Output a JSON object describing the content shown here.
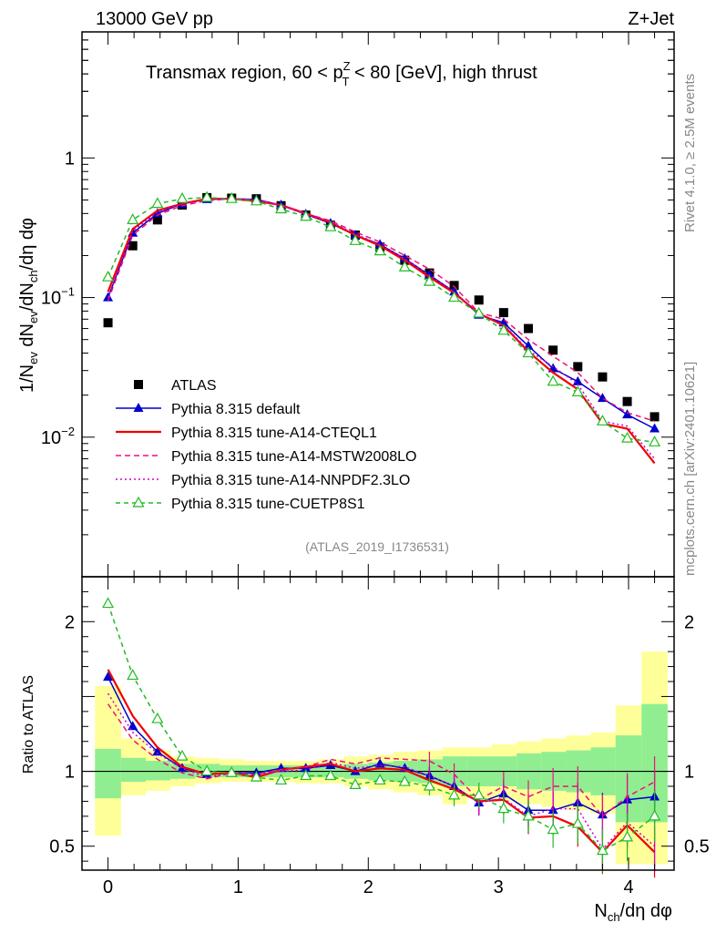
{
  "header": {
    "energy_label": "13000 GeV pp",
    "process_label": "Z+Jet"
  },
  "side_text": {
    "rivet": "Rivet 4.1.0, ≥ 2.5M events",
    "mcplots": "mcplots.cern.ch [arXiv:2401.10621]"
  },
  "analysis_id": "(ATLAS_2019_I1736531)",
  "chart_data": [
    {
      "type": "line",
      "panel": "main",
      "title": "Transmax region, 60 < p_T^Z < 80 [GeV], high thrust",
      "title_parts": {
        "a": "Transmax region, 60 < p",
        "sup": "Z",
        "sub": "T",
        "b": " < 80 [GeV], high thrust"
      },
      "ylabel": "1/N_ev dN_ev/dN_ch/dη dφ",
      "xlim": [
        -0.2,
        4.35
      ],
      "ylim": [
        0.001,
        8
      ],
      "yscale": "log",
      "y_ticks": [
        {
          "v": 1,
          "label": "1"
        },
        {
          "v": 0.1,
          "label": "10",
          "exp": "−1"
        },
        {
          "v": 0.01,
          "label": "10",
          "exp": "−2"
        }
      ],
      "x": [
        0.0,
        0.19,
        0.38,
        0.57,
        0.76,
        0.95,
        1.14,
        1.33,
        1.52,
        1.71,
        1.9,
        2.09,
        2.28,
        2.47,
        2.66,
        2.85,
        3.04,
        3.23,
        3.42,
        3.61,
        3.8,
        3.99,
        4.2
      ],
      "series": [
        {
          "name": "ATLAS",
          "color": "#000000",
          "marker": "square",
          "values": [
            0.066,
            0.235,
            0.36,
            0.46,
            0.52,
            0.515,
            0.51,
            0.455,
            0.39,
            0.33,
            0.28,
            0.23,
            0.185,
            0.15,
            0.122,
            0.096,
            0.078,
            0.06,
            0.042,
            0.032,
            0.027,
            0.018,
            0.014
          ]
        },
        {
          "name": "Pythia 8.315 default",
          "color": "#0000cc",
          "dash": "",
          "marker": "triangle",
          "values": [
            0.1,
            0.29,
            0.4,
            0.47,
            0.505,
            0.51,
            0.505,
            0.46,
            0.395,
            0.34,
            0.28,
            0.24,
            0.19,
            0.145,
            0.11,
            0.075,
            0.066,
            0.045,
            0.031,
            0.025,
            0.019,
            0.0145,
            0.0115
          ]
        },
        {
          "name": "Pythia 8.315 tune-A14-CTEQL1",
          "color": "#ee0000",
          "dash": "",
          "marker": "none",
          "values": [
            0.11,
            0.31,
            0.42,
            0.47,
            0.51,
            0.51,
            0.49,
            0.46,
            0.4,
            0.345,
            0.28,
            0.235,
            0.185,
            0.14,
            0.108,
            0.077,
            0.063,
            0.041,
            0.029,
            0.022,
            0.0125,
            0.0115,
            0.0065
          ]
        },
        {
          "name": "Pythia 8.315 tune-A14-MSTW2008LO",
          "color": "#ee1177",
          "dash": "6,4",
          "marker": "none",
          "values": [
            0.095,
            0.28,
            0.39,
            0.455,
            0.495,
            0.51,
            0.5,
            0.46,
            0.4,
            0.355,
            0.295,
            0.25,
            0.2,
            0.16,
            0.12,
            0.078,
            0.07,
            0.05,
            0.038,
            0.029,
            0.019,
            0.015,
            0.013
          ]
        },
        {
          "name": "Pythia 8.315 tune-A14-NNPDF2.3LO",
          "color": "#cc00cc",
          "dash": "2,3",
          "marker": "none",
          "values": [
            0.1,
            0.3,
            0.41,
            0.47,
            0.5,
            0.51,
            0.5,
            0.455,
            0.395,
            0.35,
            0.285,
            0.24,
            0.19,
            0.145,
            0.11,
            0.076,
            0.064,
            0.042,
            0.032,
            0.024,
            0.013,
            0.012,
            0.007
          ]
        },
        {
          "name": "Pythia 8.315 tune-CUETP8S1",
          "color": "#22bb22",
          "dash": "5,4",
          "marker": "triangle-open",
          "values": [
            0.14,
            0.36,
            0.47,
            0.51,
            0.52,
            0.51,
            0.49,
            0.43,
            0.38,
            0.32,
            0.255,
            0.215,
            0.165,
            0.13,
            0.1,
            0.077,
            0.058,
            0.04,
            0.025,
            0.021,
            0.013,
            0.0098,
            0.0092
          ]
        }
      ]
    },
    {
      "type": "line",
      "panel": "ratio",
      "ylabel": "Ratio to ATLAS",
      "xlabel": "N_ch/dη dφ",
      "xlim": [
        -0.2,
        4.35
      ],
      "ylim": [
        0.34,
        2.3
      ],
      "y_ticks": [
        {
          "v": 0.5,
          "label": "0.5"
        },
        {
          "v": 1,
          "label": "1"
        },
        {
          "v": 2,
          "label": "2"
        }
      ],
      "x_ticks": [
        0,
        1,
        2,
        3,
        4
      ],
      "bands": {
        "edges": [
          -0.1,
          0.1,
          0.29,
          0.48,
          0.67,
          0.86,
          1.05,
          1.24,
          1.43,
          1.62,
          1.81,
          2.0,
          2.19,
          2.38,
          2.57,
          2.76,
          2.95,
          3.14,
          3.33,
          3.52,
          3.71,
          3.9,
          4.1,
          4.3
        ],
        "yellow_lo": [
          0.57,
          0.84,
          0.87,
          0.9,
          0.92,
          0.93,
          0.93,
          0.93,
          0.92,
          0.92,
          0.9,
          0.88,
          0.86,
          0.84,
          0.78,
          0.82,
          0.8,
          0.78,
          0.76,
          0.74,
          0.72,
          0.38,
          0.38
        ],
        "yellow_hi": [
          1.57,
          1.22,
          1.14,
          1.1,
          1.09,
          1.08,
          1.07,
          1.07,
          1.07,
          1.08,
          1.1,
          1.11,
          1.13,
          1.14,
          1.16,
          1.16,
          1.18,
          1.2,
          1.22,
          1.24,
          1.26,
          1.44,
          1.8
        ],
        "green_lo": [
          0.82,
          0.93,
          0.94,
          0.95,
          0.96,
          0.96,
          0.96,
          0.96,
          0.96,
          0.96,
          0.95,
          0.94,
          0.93,
          0.92,
          0.9,
          0.9,
          0.9,
          0.88,
          0.87,
          0.86,
          0.84,
          0.66,
          0.66
        ],
        "green_hi": [
          1.15,
          1.09,
          1.07,
          1.05,
          1.05,
          1.04,
          1.04,
          1.04,
          1.04,
          1.04,
          1.05,
          1.06,
          1.07,
          1.08,
          1.1,
          1.1,
          1.1,
          1.12,
          1.13,
          1.14,
          1.16,
          1.24,
          1.45
        ]
      },
      "series": [
        {
          "name": "Pythia 8.315 default",
          "color": "#0000cc",
          "dash": "",
          "marker": "triangle",
          "values": [
            1.63,
            1.3,
            1.13,
            1.02,
            0.98,
            0.99,
            0.99,
            1.02,
            1.02,
            1.04,
            1.0,
            1.05,
            1.02,
            0.97,
            0.9,
            0.79,
            0.85,
            0.74,
            0.74,
            0.79,
            0.71,
            0.81,
            0.83
          ]
        },
        {
          "name": "Pythia 8.315 tune-A14-CTEQL1",
          "color": "#ee0000",
          "dash": "",
          "marker": "none",
          "values": [
            1.68,
            1.37,
            1.16,
            1.03,
            0.98,
            0.99,
            0.96,
            1.01,
            1.03,
            1.05,
            1.0,
            1.02,
            1.01,
            0.94,
            0.88,
            0.8,
            0.81,
            0.69,
            0.7,
            0.63,
            0.46,
            0.64,
            0.46
          ]
        },
        {
          "name": "Pythia 8.315 tune-A14-MSTW2008LO",
          "color": "#ee1177",
          "dash": "6,4",
          "marker": "none",
          "values": [
            1.45,
            1.21,
            1.08,
            0.99,
            0.95,
            0.99,
            0.98,
            1.01,
            1.03,
            1.08,
            1.05,
            1.09,
            1.08,
            1.07,
            0.98,
            0.81,
            0.9,
            0.83,
            0.9,
            0.9,
            0.7,
            0.83,
            0.93
          ]
        },
        {
          "name": "Pythia 8.315 tune-A14-NNPDF2.3LO",
          "color": "#cc00cc",
          "dash": "2,3",
          "marker": "none",
          "values": [
            1.52,
            1.26,
            1.12,
            1.02,
            0.96,
            0.99,
            0.98,
            1.0,
            1.01,
            1.06,
            1.02,
            1.04,
            1.03,
            0.97,
            0.9,
            0.79,
            0.82,
            0.7,
            0.75,
            0.75,
            0.48,
            0.66,
            0.5
          ]
        },
        {
          "name": "Pythia 8.315 tune-CUETP8S1",
          "color": "#22bb22",
          "dash": "5,4",
          "marker": "triangle-open",
          "values": [
            2.12,
            1.64,
            1.35,
            1.1,
            1.0,
            0.99,
            0.96,
            0.94,
            0.97,
            0.97,
            0.91,
            0.94,
            0.93,
            0.9,
            0.84,
            0.84,
            0.75,
            0.7,
            0.61,
            0.65,
            0.47,
            0.56,
            0.7
          ]
        }
      ]
    }
  ]
}
